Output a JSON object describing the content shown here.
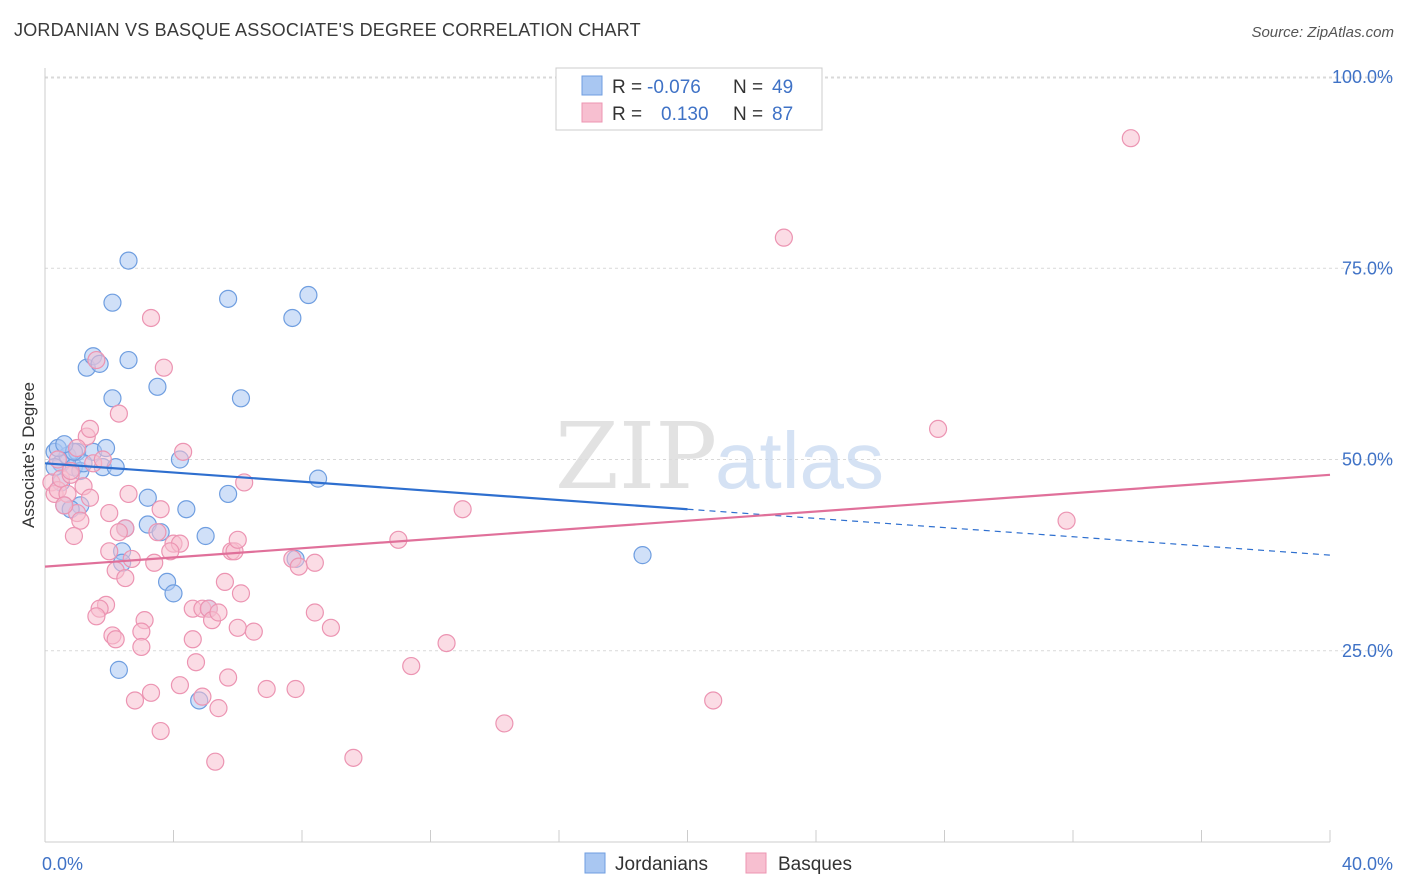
{
  "title": "JORDANIAN VS BASQUE ASSOCIATE'S DEGREE CORRELATION CHART",
  "source": "Source: ZipAtlas.com",
  "watermark": {
    "zip": "ZIP",
    "atlas": "atlas"
  },
  "colors": {
    "jordanians_fill": "#a9c7f2",
    "jordanians_stroke": "#6f9ee0",
    "jordanians_line": "#2e6fcf",
    "basques_fill": "#f7bfd0",
    "basques_stroke": "#ec94b2",
    "basques_line": "#e0709a",
    "tick": "#3f72c6"
  },
  "legend": {
    "rows": [
      {
        "r_label": "R = ",
        "r_value": "-0.076",
        "n_label": "N = ",
        "n_value": "49"
      },
      {
        "r_label": "R = ",
        "r_value": "0.130",
        "n_label": "N = ",
        "n_value": "87"
      }
    ],
    "bottom": [
      "Jordanians",
      "Basques"
    ]
  },
  "chart_data": {
    "type": "scatter",
    "title": "JORDANIAN VS BASQUE ASSOCIATE'S DEGREE CORRELATION CHART",
    "xlabel": "",
    "ylabel": "Associate's Degree",
    "xlim": [
      0,
      40
    ],
    "ylim": [
      0,
      105
    ],
    "x_tick_labels": [
      "0.0%",
      "40.0%"
    ],
    "y_ticks": [
      25,
      50,
      75,
      100
    ],
    "y_tick_labels": [
      "25.0%",
      "50.0%",
      "75.0%",
      "100.0%"
    ],
    "grid": true,
    "series": [
      {
        "name": "Jordanians",
        "trend": {
          "x": [
            0,
            20
          ],
          "y": [
            49.5,
            43.5
          ],
          "dashed_to": [
            40,
            37.5
          ]
        },
        "points": [
          [
            0.3,
            51.0
          ],
          [
            0.5,
            49.5
          ],
          [
            0.7,
            50.5
          ],
          [
            0.4,
            51.5
          ],
          [
            0.9,
            49.0
          ],
          [
            1.0,
            51.0
          ],
          [
            0.6,
            44.0
          ],
          [
            1.1,
            48.5
          ],
          [
            1.5,
            51.0
          ],
          [
            1.8,
            49.0
          ],
          [
            1.9,
            51.5
          ],
          [
            1.3,
            62.0
          ],
          [
            2.1,
            58.0
          ],
          [
            2.6,
            63.0
          ],
          [
            2.1,
            70.5
          ],
          [
            2.6,
            76.0
          ],
          [
            3.5,
            59.5
          ],
          [
            5.7,
            71.0
          ],
          [
            6.1,
            58.0
          ],
          [
            7.7,
            68.5
          ],
          [
            8.2,
            71.5
          ],
          [
            4.2,
            50.0
          ],
          [
            8.5,
            47.5
          ],
          [
            3.2,
            45.0
          ],
          [
            4.4,
            43.5
          ],
          [
            5.7,
            45.5
          ],
          [
            3.2,
            41.5
          ],
          [
            2.5,
            41.0
          ],
          [
            3.6,
            40.5
          ],
          [
            5.0,
            40.0
          ],
          [
            2.4,
            38.0
          ],
          [
            2.4,
            36.5
          ],
          [
            3.8,
            34.0
          ],
          [
            4.0,
            32.5
          ],
          [
            5.1,
            30.5
          ],
          [
            7.8,
            37.0
          ],
          [
            18.6,
            37.5
          ],
          [
            2.3,
            22.5
          ],
          [
            4.8,
            18.5
          ],
          [
            1.1,
            44.0
          ],
          [
            0.8,
            43.5
          ],
          [
            0.5,
            47.0
          ],
          [
            0.3,
            49.0
          ],
          [
            1.2,
            49.5
          ],
          [
            0.9,
            51.0
          ],
          [
            2.2,
            49.0
          ],
          [
            1.5,
            63.5
          ],
          [
            0.6,
            52.0
          ],
          [
            1.7,
            62.5
          ]
        ]
      },
      {
        "name": "Basques",
        "trend": {
          "x": [
            0,
            40
          ],
          "y": [
            36.0,
            48.0
          ]
        },
        "points": [
          [
            0.2,
            47.0
          ],
          [
            0.3,
            45.5
          ],
          [
            0.4,
            46.0
          ],
          [
            0.5,
            47.5
          ],
          [
            0.7,
            45.5
          ],
          [
            0.8,
            48.0
          ],
          [
            1.0,
            43.0
          ],
          [
            1.1,
            42.0
          ],
          [
            0.9,
            40.0
          ],
          [
            1.3,
            53.0
          ],
          [
            1.4,
            54.0
          ],
          [
            1.5,
            49.5
          ],
          [
            1.6,
            63.0
          ],
          [
            2.3,
            56.0
          ],
          [
            3.3,
            68.5
          ],
          [
            3.7,
            62.0
          ],
          [
            4.3,
            51.0
          ],
          [
            6.2,
            47.0
          ],
          [
            2.6,
            45.5
          ],
          [
            2.0,
            43.0
          ],
          [
            2.5,
            41.0
          ],
          [
            2.3,
            40.5
          ],
          [
            2.0,
            38.0
          ],
          [
            2.2,
            35.5
          ],
          [
            2.5,
            34.5
          ],
          [
            1.9,
            31.0
          ],
          [
            1.7,
            30.5
          ],
          [
            1.6,
            29.5
          ],
          [
            2.1,
            27.0
          ],
          [
            2.2,
            26.5
          ],
          [
            3.1,
            29.0
          ],
          [
            3.0,
            27.5
          ],
          [
            3.0,
            25.5
          ],
          [
            3.5,
            40.5
          ],
          [
            3.4,
            36.5
          ],
          [
            3.6,
            43.5
          ],
          [
            4.0,
            39.0
          ],
          [
            4.2,
            39.0
          ],
          [
            4.6,
            30.5
          ],
          [
            4.9,
            30.5
          ],
          [
            5.1,
            30.5
          ],
          [
            5.2,
            29.0
          ],
          [
            5.6,
            34.0
          ],
          [
            5.8,
            38.0
          ],
          [
            5.9,
            38.0
          ],
          [
            6.1,
            32.5
          ],
          [
            6.0,
            39.5
          ],
          [
            6.0,
            28.0
          ],
          [
            6.5,
            27.5
          ],
          [
            4.6,
            26.5
          ],
          [
            4.7,
            23.5
          ],
          [
            5.7,
            21.5
          ],
          [
            4.9,
            19.0
          ],
          [
            5.4,
            17.5
          ],
          [
            4.2,
            20.5
          ],
          [
            3.3,
            19.5
          ],
          [
            2.8,
            18.5
          ],
          [
            3.6,
            14.5
          ],
          [
            5.3,
            10.5
          ],
          [
            6.9,
            20.0
          ],
          [
            7.7,
            37.0
          ],
          [
            7.9,
            36.0
          ],
          [
            8.4,
            36.5
          ],
          [
            8.4,
            30.0
          ],
          [
            8.9,
            28.0
          ],
          [
            9.6,
            11.0
          ],
          [
            11.0,
            39.5
          ],
          [
            11.4,
            23.0
          ],
          [
            12.5,
            26.0
          ],
          [
            13.0,
            43.5
          ],
          [
            14.3,
            15.5
          ],
          [
            20.8,
            18.5
          ],
          [
            23.0,
            79.0
          ],
          [
            27.8,
            54.0
          ],
          [
            31.8,
            42.0
          ],
          [
            33.8,
            92.0
          ],
          [
            1.2,
            46.5
          ],
          [
            0.6,
            44.0
          ],
          [
            1.0,
            51.5
          ],
          [
            2.7,
            37.0
          ],
          [
            3.9,
            38.0
          ],
          [
            5.4,
            30.0
          ],
          [
            7.8,
            20.0
          ],
          [
            1.4,
            45.0
          ],
          [
            0.4,
            50.0
          ],
          [
            0.8,
            48.5
          ],
          [
            1.8,
            50.0
          ]
        ]
      }
    ]
  }
}
